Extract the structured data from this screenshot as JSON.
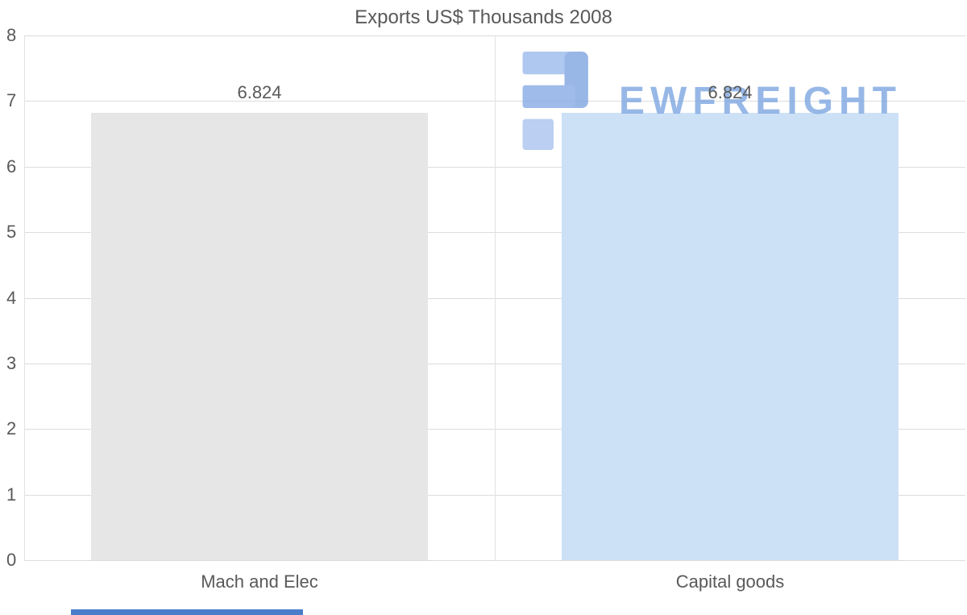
{
  "watermark": {
    "text": "EWFREIGHT",
    "color": "#7ea7e2"
  },
  "colors": {
    "background": "#ffffff",
    "grid": "#dcdcdc",
    "separator": "#e2e2e2",
    "axis_text": "#595959",
    "title_text": "#595959",
    "bottom_strip": "#4a7dc9"
  },
  "chart_data": {
    "type": "bar",
    "title": "Exports US$ Thousands 2008",
    "categories": [
      "Mach and Elec",
      "Capital goods"
    ],
    "values": [
      6.824,
      6.824
    ],
    "value_labels": [
      "6.824",
      "6.824"
    ],
    "bar_colors": [
      "#e6e6e6",
      "#cde1f6"
    ],
    "xlabel": "",
    "ylabel": "",
    "ylim": [
      0,
      8
    ],
    "yticks": [
      0,
      1,
      2,
      3,
      4,
      5,
      6,
      7,
      8
    ],
    "grid": "horizontal",
    "legend": "none"
  }
}
